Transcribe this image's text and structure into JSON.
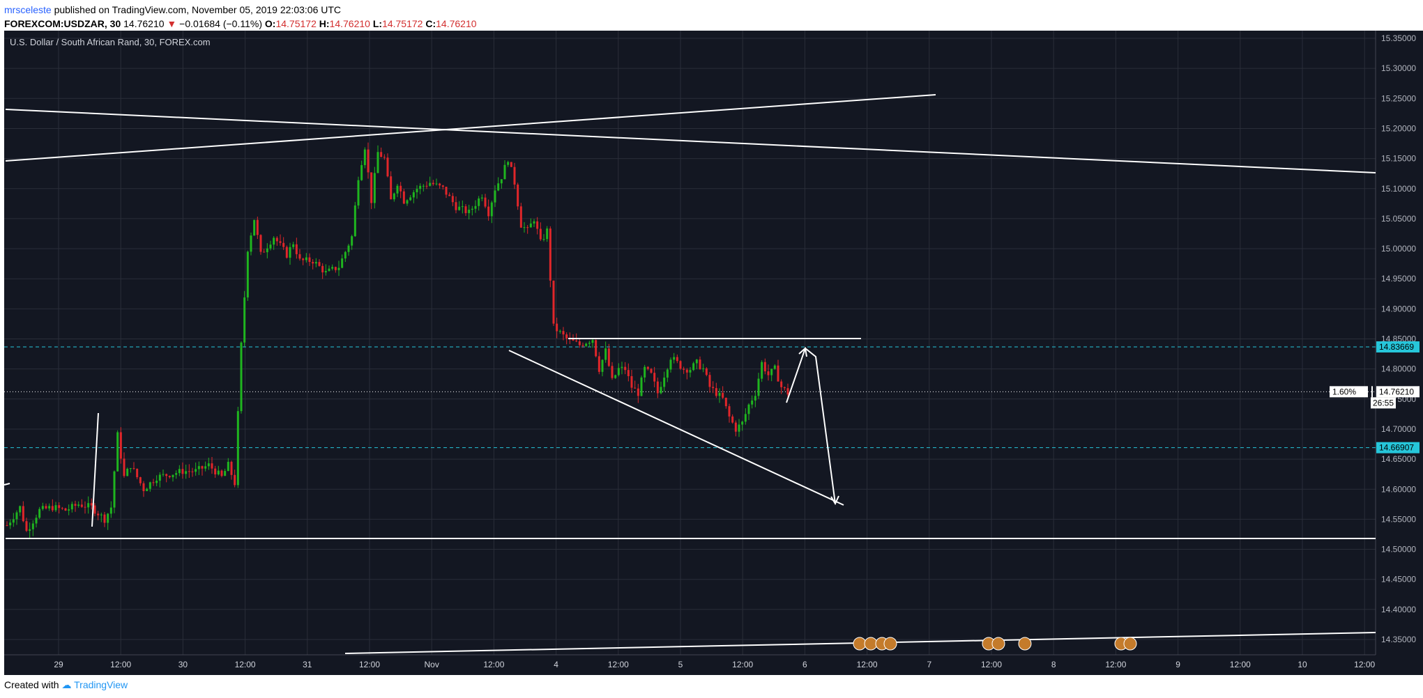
{
  "header": {
    "user": "mrsceleste",
    "published": "published on TradingView.com, November 05, 2019 22:03:06 UTC",
    "symbol": "FOREXCOM:USDZAR, 30",
    "last": "14.76210",
    "change": "−0.01684 (−0.11%)",
    "o_label": "O:",
    "o": "14.75172",
    "h_label": "H:",
    "h": "14.76210",
    "l_label": "L:",
    "l": "14.75172",
    "c_label": "C:",
    "c": "14.76210"
  },
  "footer": {
    "created": "Created with",
    "brand": "TradingView"
  },
  "colors": {
    "bg": "#131722",
    "up": "#26a69a",
    "upBar": "#1fb51f",
    "down": "#e0262a",
    "cyan": "#26c6da",
    "grid": "#2a2e39",
    "text": "#b2b5be"
  },
  "chart_data": {
    "type": "candlestick",
    "title": "U.S. Dollar / South African Rand, 30, FOREX.com",
    "ylim": [
      14.32,
      15.36
    ],
    "y_ticks": [
      "15.35000",
      "15.30000",
      "15.25000",
      "15.20000",
      "15.15000",
      "15.10000",
      "15.05000",
      "15.00000",
      "14.95000",
      "14.90000",
      "14.85000",
      "14.80000",
      "14.75000",
      "14.70000",
      "14.65000",
      "14.60000",
      "14.55000",
      "14.50000",
      "14.45000",
      "14.40000",
      "14.35000"
    ],
    "x_ticks": [
      "29",
      "12:00",
      "30",
      "12:00",
      "31",
      "12:00",
      "Nov",
      "12:00",
      "4",
      "12:00",
      "5",
      "12:00",
      "6",
      "12:00",
      "7",
      "12:00",
      "8",
      "12:00",
      "9",
      "12:00",
      "10",
      "12:00"
    ],
    "price_labels": {
      "resistance": "14.83669",
      "current": "14.76210",
      "pct": "1.60%",
      "countdown": "26:55",
      "support": "14.66907"
    },
    "horizontal_levels": [
      14.83669,
      14.66907
    ],
    "current_price": 14.7621,
    "price_path": [
      [
        0,
        14.54
      ],
      [
        2,
        14.57
      ],
      [
        3,
        14.53
      ],
      [
        5,
        14.565
      ],
      [
        7,
        14.57
      ],
      [
        9,
        14.565
      ],
      [
        11,
        14.575
      ],
      [
        13,
        14.57
      ],
      [
        15,
        14.55
      ],
      [
        16,
        14.57
      ],
      [
        17,
        14.69
      ],
      [
        18,
        14.62
      ],
      [
        19,
        14.64
      ],
      [
        21,
        14.6
      ],
      [
        23,
        14.62
      ],
      [
        25,
        14.625
      ],
      [
        27,
        14.63
      ],
      [
        29,
        14.63
      ],
      [
        31,
        14.64
      ],
      [
        33,
        14.62
      ],
      [
        34,
        14.64
      ],
      [
        35,
        14.61
      ],
      [
        36,
        14.84
      ],
      [
        37,
        15.0
      ],
      [
        38,
        15.05
      ],
      [
        39,
        14.99
      ],
      [
        41,
        15.02
      ],
      [
        43,
        14.99
      ],
      [
        44,
        15.01
      ],
      [
        45,
        14.98
      ],
      [
        47,
        14.98
      ],
      [
        49,
        14.96
      ],
      [
        51,
        14.97
      ],
      [
        53,
        15.02
      ],
      [
        54,
        15.12
      ],
      [
        55,
        15.17
      ],
      [
        56,
        15.08
      ],
      [
        57,
        15.16
      ],
      [
        58,
        15.15
      ],
      [
        59,
        15.08
      ],
      [
        60,
        15.11
      ],
      [
        61,
        15.08
      ],
      [
        63,
        15.1
      ],
      [
        65,
        15.11
      ],
      [
        67,
        15.1
      ],
      [
        69,
        15.07
      ],
      [
        71,
        15.06
      ],
      [
        73,
        15.09
      ],
      [
        74,
        15.06
      ],
      [
        75,
        15.1
      ],
      [
        76,
        15.12
      ],
      [
        77,
        15.15
      ],
      [
        78,
        15.11
      ],
      [
        79,
        15.04
      ],
      [
        80,
        15.03
      ],
      [
        81,
        15.05
      ],
      [
        82,
        15.01
      ],
      [
        83,
        15.03
      ],
      [
        84,
        14.87
      ],
      [
        85,
        14.86
      ],
      [
        86,
        14.85
      ],
      [
        88,
        14.84
      ],
      [
        90,
        14.85
      ],
      [
        91,
        14.8
      ],
      [
        92,
        14.83
      ],
      [
        93,
        14.78
      ],
      [
        94,
        14.8
      ],
      [
        95,
        14.8
      ],
      [
        96,
        14.77
      ],
      [
        97,
        14.76
      ],
      [
        98,
        14.8
      ],
      [
        99,
        14.79
      ],
      [
        100,
        14.76
      ],
      [
        101,
        14.79
      ],
      [
        102,
        14.82
      ],
      [
        103,
        14.81
      ],
      [
        104,
        14.8
      ],
      [
        105,
        14.8
      ],
      [
        106,
        14.81
      ],
      [
        107,
        14.8
      ],
      [
        108,
        14.77
      ],
      [
        109,
        14.76
      ],
      [
        110,
        14.75
      ],
      [
        111,
        14.72
      ],
      [
        112,
        14.7
      ],
      [
        113,
        14.71
      ],
      [
        114,
        14.74
      ],
      [
        115,
        14.76
      ],
      [
        116,
        14.81
      ],
      [
        117,
        14.79
      ],
      [
        118,
        14.8
      ],
      [
        119,
        14.77
      ],
      [
        120,
        14.76
      ]
    ],
    "annotations": "trend lines, triangle pattern, projected arrows"
  }
}
